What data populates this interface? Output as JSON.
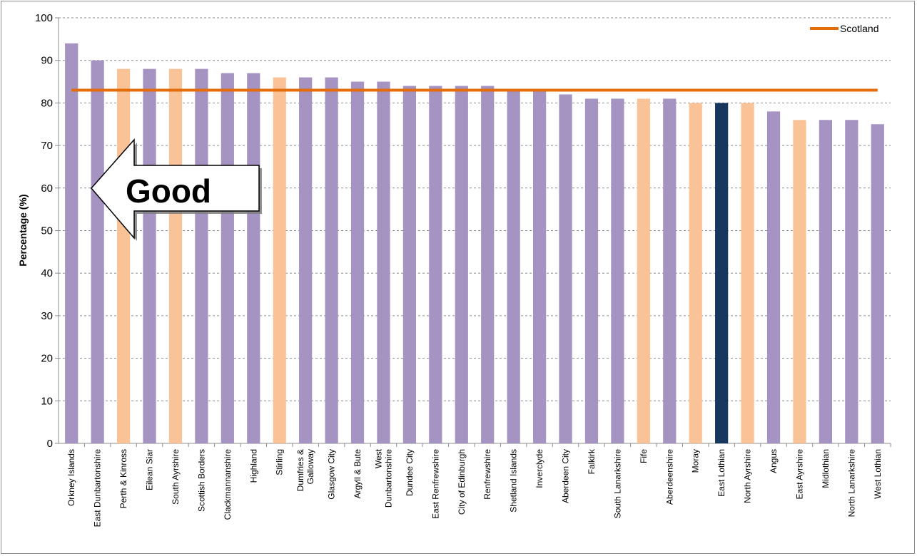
{
  "chart_data": {
    "type": "bar",
    "title": "",
    "xlabel": "",
    "ylabel": "Percentage (%)",
    "ylim": [
      0,
      100
    ],
    "yticks": [
      0,
      10,
      20,
      30,
      40,
      50,
      60,
      70,
      80,
      90,
      100
    ],
    "grid": "horizontal dashed",
    "categories": [
      "Orkney Islands",
      "East Dunbartonshire",
      "Perth & Kinross",
      "Eilean Siar",
      "South Ayrshire",
      "Scottish Borders",
      "Clackmannanshire",
      "Highland",
      "Stirling",
      "Dumfries & Galloway",
      "Glasgow City",
      "Argyll & Bute",
      "West Dunbartonshire",
      "Dundee City",
      "East Renfrewshire",
      "City of Edinburgh",
      "Renfrewshire",
      "Shetland Islands",
      "Inverclyde",
      "Aberdeen City",
      "Falkirk",
      "South Lanarkshire",
      "Fife",
      "Aberdeenshire",
      "Moray",
      "East Lothian",
      "North Ayrshire",
      "Angus",
      "East Ayrshire",
      "Midlothian",
      "North Lanarkshire",
      "West Lothian"
    ],
    "values": [
      94,
      90,
      88,
      88,
      88,
      88,
      87,
      87,
      86,
      86,
      86,
      85,
      85,
      84,
      84,
      84,
      84,
      83,
      83,
      82,
      81,
      81,
      81,
      81,
      80,
      80,
      80,
      78,
      76,
      76,
      76,
      75
    ],
    "bar_groups": [
      "default",
      "default",
      "highlight",
      "default",
      "highlight",
      "default",
      "default",
      "default",
      "highlight",
      "default",
      "default",
      "default",
      "default",
      "default",
      "default",
      "default",
      "default",
      "default",
      "default",
      "default",
      "default",
      "default",
      "highlight",
      "default",
      "highlight",
      "focus",
      "highlight",
      "default",
      "highlight",
      "default",
      "default",
      "default"
    ],
    "colors": {
      "default": "#a593c1",
      "highlight": "#f9c397",
      "focus": "#17375e",
      "reference": "#e46c0a",
      "grid": "#8c8c8c"
    },
    "reference_line": {
      "name": "Scotland",
      "value": 83
    },
    "legend": {
      "position": "top-right",
      "entries": [
        "Scotland"
      ]
    },
    "annotation": {
      "text": "Good",
      "shape": "left-arrow"
    }
  }
}
